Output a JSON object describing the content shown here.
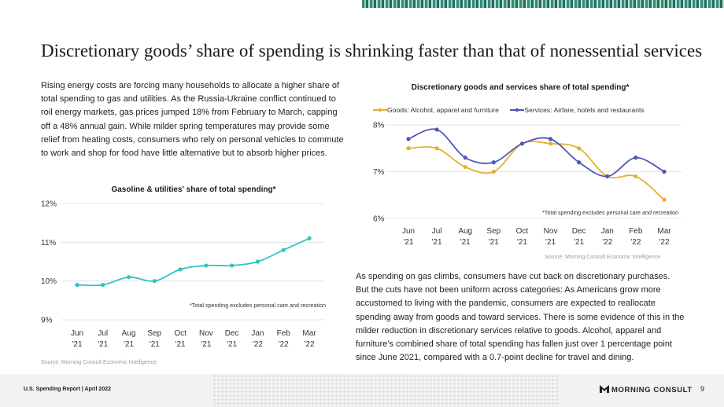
{
  "headline": "Discretionary goods’ share of spending is shrinking faster than that of nonessential services",
  "left_paragraph": "Rising energy costs are forcing many households to allocate a higher share of total spending to gas and utilities. As the Russia-Ukraine conflict continued to roil energy markets, gas prices jumped 18% from February to March, capping off a 48% annual gain. While milder spring temperatures may provide some relief from heating costs, consumers who rely on personal vehicles to commute to work and shop for food have little alternative but to absorb higher prices.",
  "right_paragraph": "As spending on gas climbs, consumers have cut back on discretionary purchases. But the cuts have not been uniform across categories: As Americans grow more accustomed to living with the pandemic, consumers are expected to reallocate spending away from goods and toward services. There is some evidence of this in the milder reduction in discretionary services relative to goods. Alcohol, apparel and furniture's combined share of total spending has fallen just over 1 percentage point since June 2021, compared with a 0.7-point decline for travel and dining.",
  "footer": {
    "report": "U.S. Spending Report | April 2022",
    "logo": "MORNING CONSULT",
    "page": "9"
  },
  "colors": {
    "teal": "#2ec4c4",
    "gold": "#e3b22f",
    "blue": "#4f57b5",
    "grid": "#dddddd"
  },
  "chart_data": [
    {
      "type": "line",
      "title": "Gasoline & utilities' share of total spending*",
      "categories": [
        "Jun\n'21",
        "Jul\n'21",
        "Aug\n'21",
        "Sep\n'21",
        "Oct\n'21",
        "Nov\n'21",
        "Dec\n'21",
        "Jan\n'22",
        "Feb\n'22",
        "Mar\n'22"
      ],
      "series": [
        {
          "values": [
            9.9,
            9.9,
            10.1,
            10.0,
            10.3,
            10.4,
            10.4,
            10.5,
            10.8,
            11.1
          ],
          "color": "#2ec4c4"
        }
      ],
      "ylim": [
        9,
        12
      ],
      "yticks": [
        "9%",
        "10%",
        "11%",
        "12%"
      ],
      "note": "*Total spending excludes personal care and recreation",
      "source": "Source: Morning Consult Economic Intelligence",
      "grid": "horizontal"
    },
    {
      "type": "line",
      "title": "Discretionary goods and services share of total spending*",
      "categories": [
        "Jun\n'21",
        "Jul\n'21",
        "Aug\n'21",
        "Sep\n'21",
        "Oct\n'21",
        "Nov\n'21",
        "Dec\n'21",
        "Jan\n'22",
        "Feb\n'22",
        "Mar\n'22"
      ],
      "series": [
        {
          "name": "Goods: Alcohol, apparel and furniture",
          "values": [
            7.5,
            7.5,
            7.1,
            7.0,
            7.6,
            7.6,
            7.5,
            6.9,
            6.9,
            6.4
          ],
          "color": "#e3b22f"
        },
        {
          "name": "Services: Airfare, hotels and restaurants",
          "values": [
            7.7,
            7.9,
            7.3,
            7.2,
            7.6,
            7.7,
            7.2,
            6.9,
            7.3,
            7.0
          ],
          "color": "#4f57b5"
        }
      ],
      "ylim": [
        6,
        8
      ],
      "yticks": [
        "6%",
        "7%",
        "8%"
      ],
      "legend": "top",
      "note": "*Total spending excludes personal care and recreation",
      "source": "Source: Morning Consult Economic Intelligence",
      "grid": "horizontal"
    }
  ]
}
